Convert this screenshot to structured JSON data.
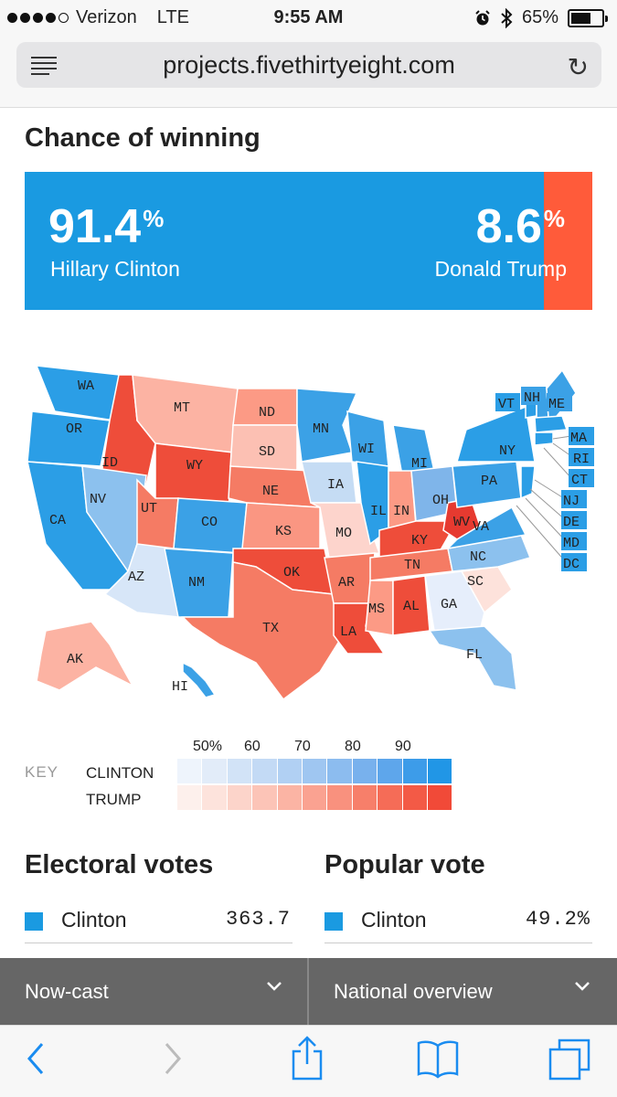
{
  "status": {
    "carrier": "Verizon",
    "network": "LTE",
    "time": "9:55 AM",
    "battery": "65%",
    "battery_level": 0.65
  },
  "browser": {
    "url": "projects.fivethirtyeight.com"
  },
  "chance": {
    "title": "Chance of winning",
    "clinton_pct": "91.4",
    "clinton_value": 91.4,
    "clinton_name": "Hillary Clinton",
    "trump_pct": "8.6",
    "trump_name": "Donald Trump",
    "pct_sign": "%"
  },
  "colors": {
    "clinton": "#1a9ae1",
    "trump": "#ff5b3a"
  },
  "map": {
    "states": [
      "WA",
      "OR",
      "CA",
      "ID",
      "NV",
      "AZ",
      "MT",
      "WY",
      "UT",
      "CO",
      "NM",
      "ND",
      "SD",
      "NE",
      "KS",
      "OK",
      "TX",
      "MN",
      "IA",
      "MO",
      "AR",
      "LA",
      "WI",
      "IL",
      "MI",
      "IN",
      "KY",
      "TN",
      "MS",
      "AL",
      "OH",
      "WV",
      "VA",
      "PA",
      "NY",
      "NC",
      "SC",
      "GA",
      "FL",
      "AK",
      "HI",
      "VT",
      "NH",
      "ME",
      "MA",
      "RI",
      "CT",
      "NJ",
      "DE",
      "MD",
      "DC"
    ]
  },
  "key": {
    "label": "KEY",
    "ticks": [
      "50%",
      "60",
      "70",
      "80",
      "90"
    ],
    "clinton_label": "CLINTON",
    "trump_label": "TRUMP"
  },
  "electoral": {
    "title": "Electoral votes",
    "candidate": "Clinton",
    "value": "363.7"
  },
  "popular": {
    "title": "Popular vote",
    "candidate": "Clinton",
    "value": "49.2%"
  },
  "dropdowns": {
    "left": "Now-cast",
    "right": "National overview"
  }
}
